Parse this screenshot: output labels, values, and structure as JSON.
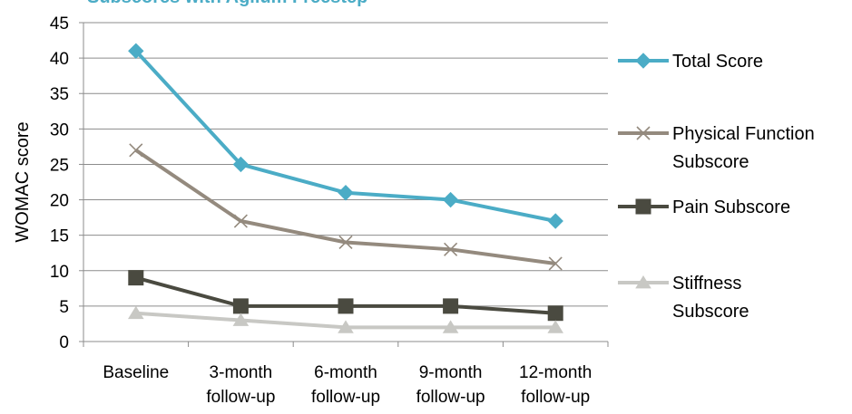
{
  "chart_data": {
    "type": "line",
    "title": "Subscores with Agilum Freestep",
    "title_color": "#4bacc6",
    "xlabel": "",
    "ylabel": "WOMAC score",
    "ylim": [
      0,
      45
    ],
    "y_ticks": [
      "0",
      "5",
      "10",
      "15",
      "20",
      "25",
      "30",
      "35",
      "40",
      "45"
    ],
    "grid": "horizontal",
    "legend_position": "right",
    "categories": [
      [
        "Baseline"
      ],
      [
        "3-month",
        "follow-up"
      ],
      [
        "6-month",
        "follow-up"
      ],
      [
        "9-month",
        "follow-up"
      ],
      [
        "12-month",
        "follow-up"
      ]
    ],
    "series": [
      {
        "name": [
          "Total Score"
        ],
        "values": [
          41,
          25,
          21,
          20,
          17
        ],
        "color": "#4bacc6",
        "marker": "diamond"
      },
      {
        "name": [
          "Physical Function",
          "Subscore"
        ],
        "values": [
          27,
          17,
          14,
          13,
          11
        ],
        "color": "#948a7e",
        "marker": "x"
      },
      {
        "name": [
          "Pain Subscore"
        ],
        "values": [
          9,
          5,
          5,
          5,
          4
        ],
        "color": "#4a4a40",
        "marker": "square"
      },
      {
        "name": [
          "Stiffness",
          "Subscore"
        ],
        "values": [
          4,
          3,
          2,
          2,
          2
        ],
        "color": "#c8c8c4",
        "marker": "triangle"
      }
    ]
  }
}
